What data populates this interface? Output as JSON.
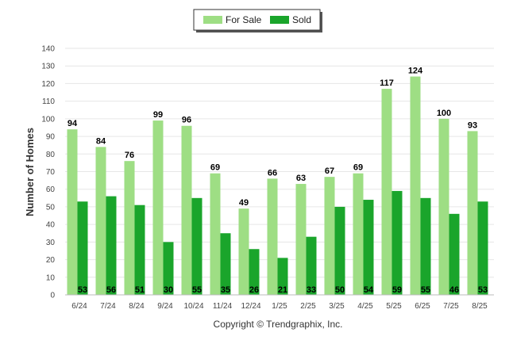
{
  "chart_data": {
    "type": "bar",
    "categories": [
      "6/24",
      "7/24",
      "8/24",
      "9/24",
      "10/24",
      "11/24",
      "12/24",
      "1/25",
      "2/25",
      "3/25",
      "4/25",
      "5/25",
      "6/25",
      "7/25",
      "8/25"
    ],
    "series": [
      {
        "name": "For Sale",
        "color": "#9ede84",
        "values": [
          94,
          84,
          76,
          99,
          96,
          69,
          49,
          66,
          63,
          67,
          69,
          117,
          124,
          100,
          93
        ]
      },
      {
        "name": "Sold",
        "color": "#1aa52b",
        "values": [
          53,
          56,
          51,
          30,
          55,
          35,
          26,
          21,
          33,
          50,
          54,
          59,
          55,
          46,
          53
        ]
      }
    ],
    "ylabel": "Number of Homes",
    "xlabel": "",
    "ylim": [
      0,
      140
    ],
    "yticks": [
      0,
      10,
      20,
      30,
      40,
      50,
      60,
      70,
      80,
      90,
      100,
      110,
      120,
      130,
      140
    ],
    "legend_position": "top-center",
    "grid": true,
    "credit": "Copyright © Trendgraphix, Inc."
  }
}
